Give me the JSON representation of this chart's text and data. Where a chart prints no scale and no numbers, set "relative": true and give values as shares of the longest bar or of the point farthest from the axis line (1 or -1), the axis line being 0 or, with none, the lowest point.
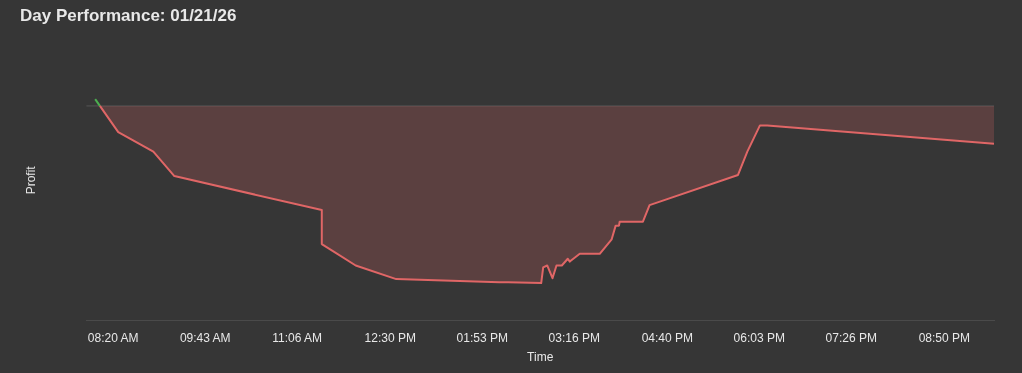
{
  "chart_data": {
    "type": "area",
    "title": "Day Performance: 01/21/26",
    "xlabel": "Time",
    "ylabel": "Profit",
    "relative": true,
    "xlim": [
      7.93,
      21.58
    ],
    "xticks": [
      {
        "value": 8.333,
        "label": "08:20 AM"
      },
      {
        "value": 9.717,
        "label": "09:43 AM"
      },
      {
        "value": 11.1,
        "label": "11:06 AM"
      },
      {
        "value": 12.5,
        "label": "12:30 PM"
      },
      {
        "value": 13.883,
        "label": "01:53 PM"
      },
      {
        "value": 15.267,
        "label": "03:16 PM"
      },
      {
        "value": 16.667,
        "label": "04:40 PM"
      },
      {
        "value": 18.05,
        "label": "06:03 PM"
      },
      {
        "value": 19.433,
        "label": "07:26 PM"
      },
      {
        "value": 20.833,
        "label": "08:50 PM"
      }
    ],
    "series": [
      {
        "color": "#e06666",
        "x": [
          8.133,
          8.409,
          8.937,
          9.253,
          11.47,
          11.47,
          11.98,
          12.59,
          14.14,
          14.77,
          14.8,
          14.86,
          14.94,
          15.0,
          15.08,
          15.17,
          15.2,
          15.35,
          15.65,
          15.83,
          15.89,
          15.94,
          15.95,
          16.3,
          16.4,
          17.73,
          17.87,
          18.06,
          18.17,
          21.58
        ],
        "values": [
          0,
          -0.148,
          -0.258,
          -0.396,
          -0.588,
          -0.78,
          -0.901,
          -0.978,
          -0.995,
          -1,
          -0.912,
          -0.901,
          -0.973,
          -0.901,
          -0.901,
          -0.863,
          -0.879,
          -0.835,
          -0.835,
          -0.753,
          -0.676,
          -0.676,
          -0.654,
          -0.654,
          -0.56,
          -0.39,
          -0.258,
          -0.11,
          -0.11,
          -0.214
        ]
      },
      {
        "type": "line",
        "color": "#4caf50",
        "x": [
          8.062,
          8.133
        ],
        "values": [
          0.038,
          0
        ]
      }
    ]
  }
}
